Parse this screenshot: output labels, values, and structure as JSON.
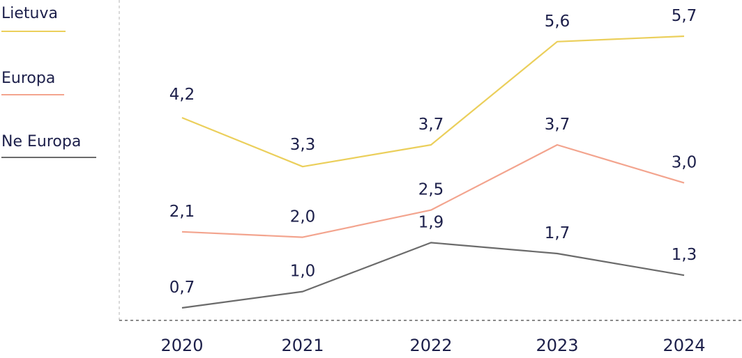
{
  "chart_data": {
    "type": "line",
    "x": [
      "2020",
      "2021",
      "2022",
      "2023",
      "2024"
    ],
    "series": [
      {
        "name": "Lietuva",
        "values": [
          4.2,
          3.3,
          3.7,
          5.6,
          5.7
        ],
        "labels": [
          "4,2",
          "3,3",
          "3,7",
          "5,6",
          "5,7"
        ],
        "color": "#EBCF5B"
      },
      {
        "name": "Europa",
        "values": [
          2.1,
          2.0,
          2.5,
          3.7,
          3.0
        ],
        "labels": [
          "2,1",
          "2,0",
          "2,5",
          "3,7",
          "3,0"
        ],
        "color": "#F3A48E"
      },
      {
        "name": "Ne Europa",
        "values": [
          0.7,
          1.0,
          1.9,
          1.7,
          1.3
        ],
        "labels": [
          "0,7",
          "1,0",
          "1,9",
          "1,7",
          "1,3"
        ],
        "color": "#6B6B6B"
      }
    ],
    "ylim": [
      0.7,
      5.7
    ],
    "grid": false,
    "legend": "left",
    "title": "",
    "xlabel": "",
    "ylabel": ""
  }
}
